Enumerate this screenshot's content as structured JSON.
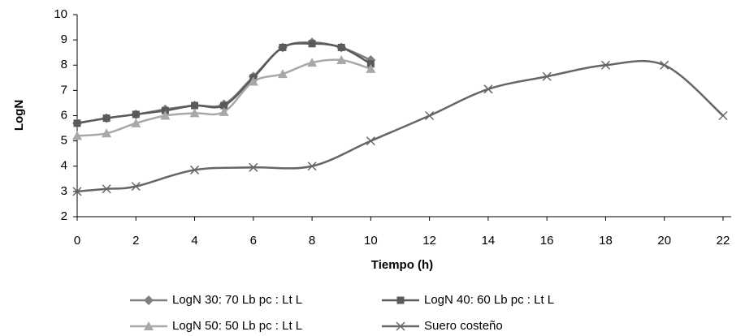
{
  "chart_data": {
    "type": "line",
    "y_label": "LogN",
    "x_label": "Tiempo (h)",
    "xlim": [
      0,
      22
    ],
    "xticks": [
      0,
      2,
      4,
      6,
      8,
      10,
      12,
      14,
      16,
      18,
      20,
      22
    ],
    "ylim": [
      2,
      10
    ],
    "yticks": [
      2,
      3,
      4,
      5,
      6,
      7,
      8,
      9,
      10
    ],
    "grid": false,
    "smooth": true,
    "legend": "bottom",
    "series": [
      {
        "name": "LogN 30: 70 Lb pc : Lt L",
        "color": "#7f7f7f",
        "marker": "diamond",
        "x": [
          0,
          1,
          2,
          3,
          4,
          5,
          6,
          7,
          8,
          9,
          10
        ],
        "values": [
          5.7,
          5.9,
          6.05,
          6.25,
          6.4,
          6.45,
          7.55,
          8.7,
          8.9,
          8.7,
          8.2
        ]
      },
      {
        "name": "LogN 40: 60 Lb pc : Lt L",
        "color": "#5a5a5a",
        "marker": "square",
        "x": [
          0,
          1,
          2,
          3,
          4,
          5,
          6,
          7,
          8,
          9,
          10
        ],
        "values": [
          5.7,
          5.9,
          6.05,
          6.2,
          6.4,
          6.4,
          7.5,
          8.7,
          8.85,
          8.7,
          8.05
        ]
      },
      {
        "name": "LogN 50: 50 Lb pc : Lt L",
        "color": "#a8a8a8",
        "marker": "triangle",
        "x": [
          0,
          1,
          2,
          3,
          4,
          5,
          6,
          7,
          8,
          9,
          10
        ],
        "values": [
          5.2,
          5.3,
          5.7,
          6.0,
          6.1,
          6.15,
          7.35,
          7.65,
          8.1,
          8.2,
          7.85
        ]
      },
      {
        "name": "Suero costeño",
        "color": "#666666",
        "marker": "x",
        "x": [
          0,
          1,
          2,
          4,
          6,
          8,
          10,
          12,
          14,
          16,
          18,
          20,
          22
        ],
        "values": [
          3.0,
          3.1,
          3.2,
          3.85,
          3.95,
          4.0,
          5.0,
          6.0,
          7.05,
          7.55,
          8.0,
          8.0,
          6.0
        ]
      }
    ]
  }
}
